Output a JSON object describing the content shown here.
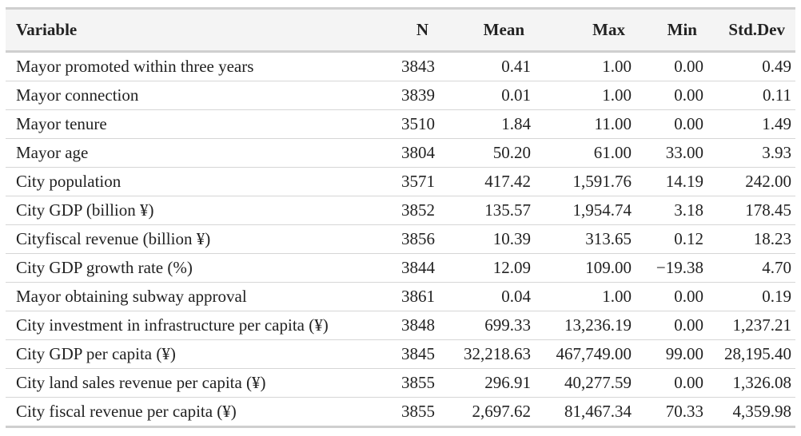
{
  "table": {
    "headers": {
      "variable": "Variable",
      "n": "N",
      "mean": "Mean",
      "max": "Max",
      "min": "Min",
      "sd": "Std.Dev"
    },
    "rows": [
      {
        "variable": "Mayor promoted within three years",
        "n": "3843",
        "mean": "0.41",
        "max": "1.00",
        "min": "0.00",
        "sd": "0.49"
      },
      {
        "variable": "Mayor connection",
        "n": "3839",
        "mean": "0.01",
        "max": "1.00",
        "min": "0.00",
        "sd": "0.11"
      },
      {
        "variable": "Mayor tenure",
        "n": "3510",
        "mean": "1.84",
        "max": "11.00",
        "min": "0.00",
        "sd": "1.49"
      },
      {
        "variable": "Mayor age",
        "n": "3804",
        "mean": "50.20",
        "max": "61.00",
        "min": "33.00",
        "sd": "3.93"
      },
      {
        "variable": "City population",
        "n": "3571",
        "mean": "417.42",
        "max": "1,591.76",
        "min": "14.19",
        "sd": "242.00"
      },
      {
        "variable": "City GDP (billion ¥)",
        "n": "3852",
        "mean": "135.57",
        "max": "1,954.74",
        "min": "3.18",
        "sd": "178.45"
      },
      {
        "variable": "Cityfiscal revenue (billion ¥)",
        "n": "3856",
        "mean": "10.39",
        "max": "313.65",
        "min": "0.12",
        "sd": "18.23"
      },
      {
        "variable": "City GDP growth rate (%)",
        "n": "3844",
        "mean": "12.09",
        "max": "109.00",
        "min": "−19.38",
        "sd": "4.70"
      },
      {
        "variable": "Mayor obtaining subway approval",
        "n": "3861",
        "mean": "0.04",
        "max": "1.00",
        "min": "0.00",
        "sd": "0.19"
      },
      {
        "variable": "City investment in infrastructure per capita (¥)",
        "n": "3848",
        "mean": "699.33",
        "max": "13,236.19",
        "min": "0.00",
        "sd": "1,237.21"
      },
      {
        "variable": "City GDP per capita (¥)",
        "n": "3845",
        "mean": "32,218.63",
        "max": "467,749.00",
        "min": "99.00",
        "sd": "28,195.40"
      },
      {
        "variable": "City land sales revenue per capita (¥)",
        "n": "3855",
        "mean": "296.91",
        "max": "40,277.59",
        "min": "0.00",
        "sd": "1,326.08"
      },
      {
        "variable": "City fiscal revenue per capita (¥)",
        "n": "3855",
        "mean": "2,697.62",
        "max": "81,467.34",
        "min": "70.33",
        "sd": "4,359.98"
      }
    ]
  }
}
